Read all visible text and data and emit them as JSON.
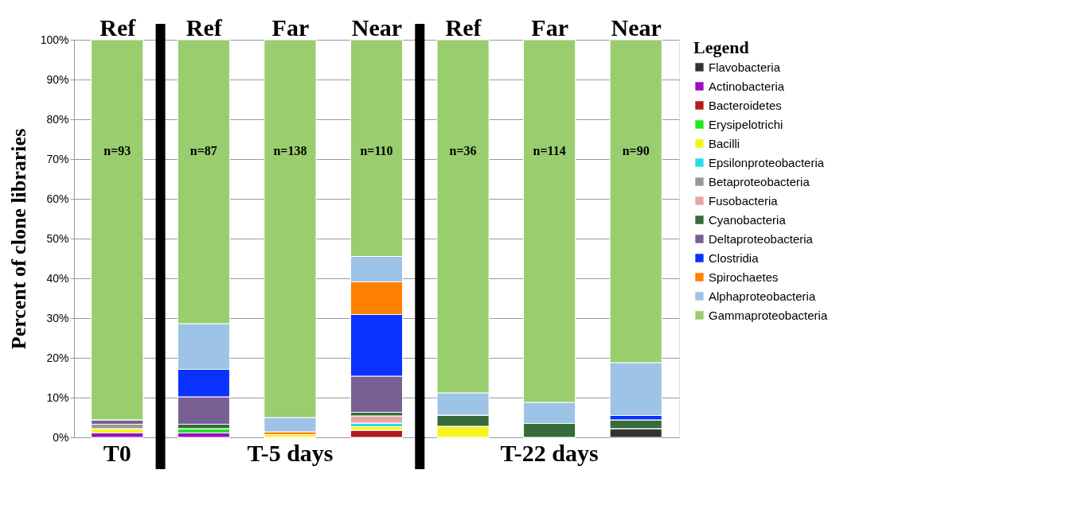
{
  "chart_data": {
    "type": "bar",
    "stacked": true,
    "ylabel": "Percent of clone libraries",
    "legend_title": "Legend",
    "legend": "right",
    "grid": "y",
    "categories": [
      "Ref",
      "Ref",
      "Far",
      "Near",
      "Ref",
      "Far",
      "Near"
    ],
    "ylim": [
      0,
      100
    ],
    "yticks": [
      {
        "value": 0,
        "label": "0%"
      },
      {
        "value": 10,
        "label": "10%"
      },
      {
        "value": 20,
        "label": "20%"
      },
      {
        "value": 30,
        "label": "30%"
      },
      {
        "value": 40,
        "label": "40%"
      },
      {
        "value": 50,
        "label": "50%"
      },
      {
        "value": 60,
        "label": "60%"
      },
      {
        "value": 70,
        "label": "70%"
      },
      {
        "value": 80,
        "label": "80%"
      },
      {
        "value": 90,
        "label": "90%"
      },
      {
        "value": 100,
        "label": "100%"
      }
    ],
    "series": [
      {
        "name": "Flavobacteria",
        "color": "#333333",
        "values": [
          0,
          0,
          0,
          0,
          0,
          0,
          2.2
        ]
      },
      {
        "name": "Actinobacteria",
        "color": "#9a10c0",
        "values": [
          1.1,
          1.1,
          0,
          0,
          0,
          0,
          0
        ]
      },
      {
        "name": "Bacteroidetes",
        "color": "#b01c1c",
        "values": [
          0,
          0,
          0,
          1.8,
          0,
          0,
          0
        ]
      },
      {
        "name": "Erysipelotrichi",
        "color": "#1ee81e",
        "values": [
          0,
          1.1,
          0,
          0,
          0,
          0,
          0
        ]
      },
      {
        "name": "Bacilli",
        "color": "#f5f51e",
        "values": [
          1.1,
          0,
          0.7,
          0.9,
          2.8,
          0,
          0
        ]
      },
      {
        "name": "Epsilonproteobacteria",
        "color": "#28dcec",
        "values": [
          0,
          0,
          0,
          0.9,
          0,
          0,
          0
        ]
      },
      {
        "name": "Betaproteobacteria",
        "color": "#999999",
        "values": [
          1.1,
          0,
          0,
          0,
          0,
          0,
          0
        ]
      },
      {
        "name": "Fusobacteria",
        "color": "#e8a5a5",
        "values": [
          0,
          0,
          0,
          1.8,
          0,
          0,
          0
        ]
      },
      {
        "name": "Cyanobacteria",
        "color": "#366b3b",
        "values": [
          0,
          1.1,
          0,
          0.9,
          2.8,
          3.5,
          2.2
        ]
      },
      {
        "name": "Deltaproteobacteria",
        "color": "#7a5f94",
        "values": [
          1.1,
          6.9,
          0,
          9.1,
          0,
          0,
          0
        ]
      },
      {
        "name": "Clostridia",
        "color": "#0a32ff",
        "values": [
          0,
          6.9,
          0,
          15.5,
          0,
          0,
          1.1
        ]
      },
      {
        "name": "Spirochaetes",
        "color": "#ff7f00",
        "values": [
          0,
          0,
          0.7,
          8.2,
          0,
          0,
          0
        ]
      },
      {
        "name": "Alphaproteobacteria",
        "color": "#9dc3e6",
        "values": [
          0,
          11.5,
          3.6,
          6.4,
          5.6,
          5.3,
          13.3
        ]
      },
      {
        "name": "Gammaproteobacteria",
        "color": "#9acd6e",
        "values": [
          95.6,
          71.4,
          95.0,
          54.5,
          88.8,
          91.2,
          81.2
        ]
      }
    ],
    "annotations": [
      "n=93",
      "n=87",
      "n=138",
      "n=110",
      "n=36",
      "n=114",
      "n=90",
      "T0",
      "T-5 days",
      "T-22 days"
    ]
  }
}
